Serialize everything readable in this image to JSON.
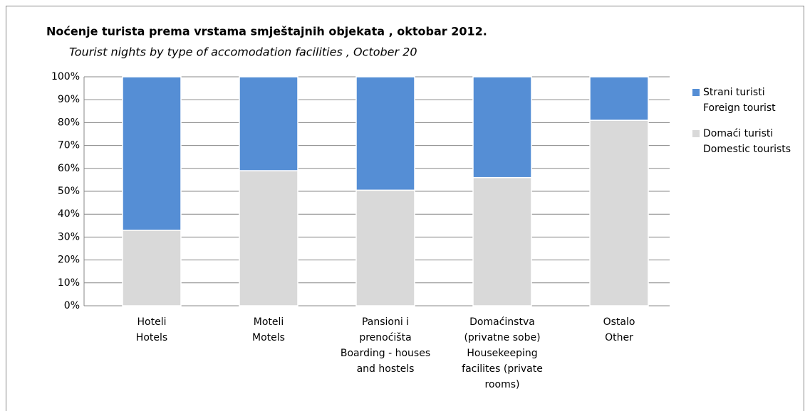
{
  "chart_data": {
    "type": "stacked_bar",
    "title": "Noćenje turista prema vrstama smještajnih objekata , oktobar 2012.",
    "subtitle": "Tourist nights by type of accomodation facilities , October 20",
    "categories": [
      [
        "Hoteli",
        "Hotels"
      ],
      [
        "Moteli",
        "Motels"
      ],
      [
        "Pansioni  i",
        "prenoćišta",
        "Boarding - houses",
        "and hostels"
      ],
      [
        "Domaćinstva",
        "(privatne sobe)",
        "Housekeeping",
        "facilites (private",
        "rooms)"
      ],
      [
        "Ostalo",
        "Other"
      ]
    ],
    "series": [
      {
        "name": [
          "Domaći turisti",
          "Domestic tourists"
        ],
        "color": "#d9d9d9",
        "values": [
          33,
          59,
          50.5,
          56,
          81
        ]
      },
      {
        "name": [
          "Strani turisti",
          "Foreign tourist"
        ],
        "color": "#558ed5",
        "values": [
          67,
          41,
          49.5,
          44,
          19
        ]
      }
    ],
    "ylim": [
      0,
      100
    ],
    "yticks": [
      {
        "value": 0,
        "label": "0%"
      },
      {
        "value": 10,
        "label": "10%"
      },
      {
        "value": 20,
        "label": "20%"
      },
      {
        "value": 30,
        "label": "30%"
      },
      {
        "value": 40,
        "label": "40%"
      },
      {
        "value": 50,
        "label": "50%"
      },
      {
        "value": 60,
        "label": "60%"
      },
      {
        "value": 70,
        "label": "70%"
      },
      {
        "value": 80,
        "label": "80%"
      },
      {
        "value": 90,
        "label": "90%"
      },
      {
        "value": 100,
        "label": "100%"
      }
    ],
    "grid": true,
    "legend": "right"
  }
}
